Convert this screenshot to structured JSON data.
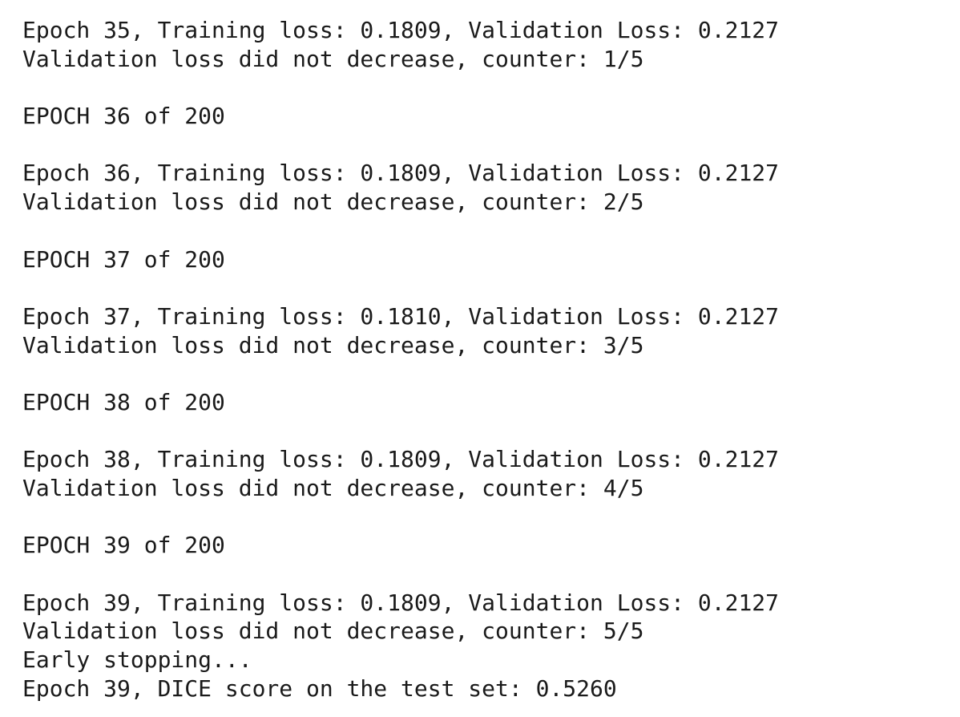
{
  "output": {
    "epoch35": {
      "summary": "Epoch 35, Training loss: 0.1809, Validation Loss: 0.2127",
      "status": "Validation loss did not decrease, counter: 1/5"
    },
    "epoch36": {
      "header": "EPOCH 36 of 200",
      "summary": "Epoch 36, Training loss: 0.1809, Validation Loss: 0.2127",
      "status": "Validation loss did not decrease, counter: 2/5"
    },
    "epoch37": {
      "header": "EPOCH 37 of 200",
      "summary": "Epoch 37, Training loss: 0.1810, Validation Loss: 0.2127",
      "status": "Validation loss did not decrease, counter: 3/5"
    },
    "epoch38": {
      "header": "EPOCH 38 of 200",
      "summary": "Epoch 38, Training loss: 0.1809, Validation Loss: 0.2127",
      "status": "Validation loss did not decrease, counter: 4/5"
    },
    "epoch39": {
      "header": "EPOCH 39 of 200",
      "summary": "Epoch 39, Training loss: 0.1809, Validation Loss: 0.2127",
      "status": "Validation loss did not decrease, counter: 5/5"
    },
    "early_stopping": "Early stopping...",
    "test_result": "Epoch 39, DICE score on the test set: 0.5260"
  },
  "colors": {
    "background": "#ffffff",
    "text": "#1a1a1a"
  }
}
